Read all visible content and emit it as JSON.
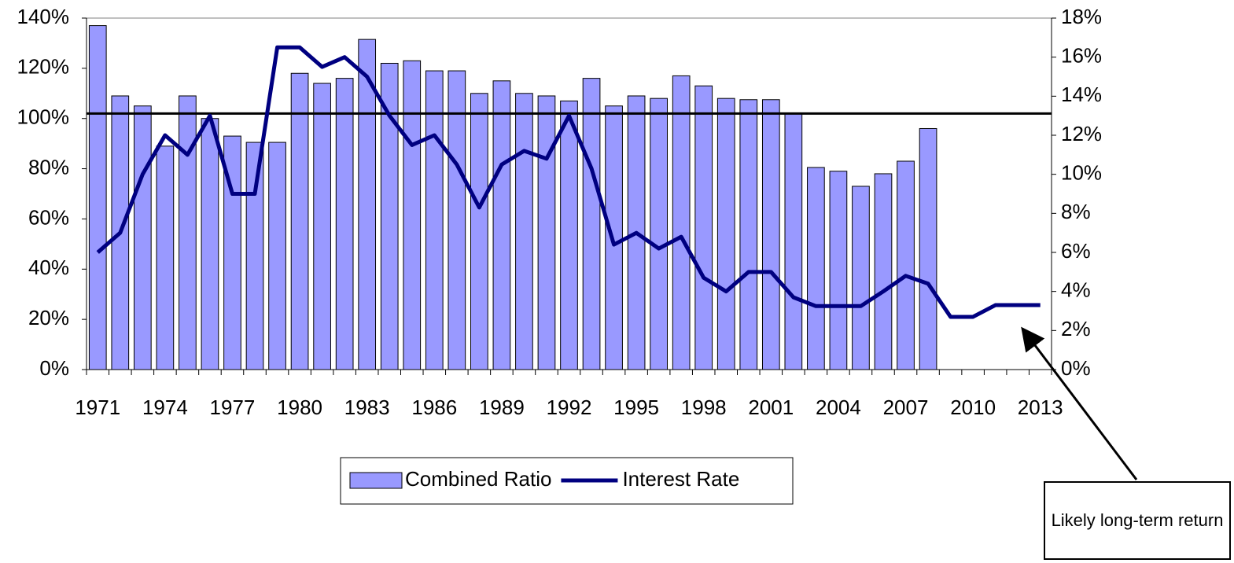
{
  "chart_data": {
    "type": "bar",
    "categories": [
      "1971",
      null,
      null,
      "1974",
      null,
      null,
      "1977",
      null,
      null,
      "1980",
      null,
      null,
      "1983",
      null,
      null,
      "1986",
      null,
      null,
      "1989",
      null,
      null,
      "1992",
      null,
      null,
      "1995",
      null,
      null,
      "1998",
      null,
      null,
      "2001",
      null,
      null,
      "2004",
      null,
      null,
      "2007",
      null,
      null,
      "2010",
      null,
      null,
      "2013"
    ],
    "series": [
      {
        "name": "Combined Ratio",
        "type": "bar",
        "color": "#9999ff",
        "axis": "y",
        "values": [
          137,
          109,
          105,
          89,
          109,
          100,
          93,
          90.5,
          90.5,
          118,
          114,
          116,
          131.5,
          122,
          123,
          119,
          119,
          110,
          115,
          110,
          109,
          107,
          116,
          105,
          109,
          108,
          117,
          113,
          108,
          107.5,
          107.5,
          102,
          80.5,
          79,
          73,
          78,
          83,
          96,
          null,
          null,
          null,
          null,
          null
        ]
      },
      {
        "name": "Interest Rate",
        "type": "line",
        "color": "#000080",
        "axis": "y2",
        "values": [
          6.0,
          7.0,
          10.0,
          12.0,
          11.0,
          13.0,
          9.0,
          9.0,
          16.5,
          16.5,
          15.5,
          16.0,
          15.0,
          13.0,
          11.5,
          12.0,
          10.5,
          8.3,
          10.5,
          11.2,
          10.8,
          13.0,
          10.3,
          6.4,
          7.0,
          6.2,
          6.8,
          4.7,
          4.0,
          5.0,
          5.0,
          3.7,
          3.25,
          3.25,
          3.25,
          4.0,
          4.8,
          4.4,
          2.7,
          2.7,
          3.3,
          3.3,
          3.3
        ]
      }
    ],
    "reference_line": 102,
    "ylim": [
      0,
      140
    ],
    "yticks": [
      {
        "value": 0,
        "label": "0%"
      },
      {
        "value": 20,
        "label": "20%"
      },
      {
        "value": 40,
        "label": "40%"
      },
      {
        "value": 60,
        "label": "60%"
      },
      {
        "value": 80,
        "label": "80%"
      },
      {
        "value": 100,
        "label": "100%"
      },
      {
        "value": 120,
        "label": "120%"
      },
      {
        "value": 140,
        "label": "140%"
      }
    ],
    "y2lim": [
      0,
      18
    ],
    "y2ticks": [
      {
        "value": 0,
        "label": "0%"
      },
      {
        "value": 2,
        "label": "2%"
      },
      {
        "value": 4,
        "label": "4%"
      },
      {
        "value": 6,
        "label": "6%"
      },
      {
        "value": 8,
        "label": "8%"
      },
      {
        "value": 10,
        "label": "10%"
      },
      {
        "value": 12,
        "label": "12%"
      },
      {
        "value": 14,
        "label": "14%"
      },
      {
        "value": 16,
        "label": "16%"
      },
      {
        "value": 18,
        "label": "18%"
      }
    ],
    "legend": "bottom",
    "annotation": "Likely long-term return"
  }
}
